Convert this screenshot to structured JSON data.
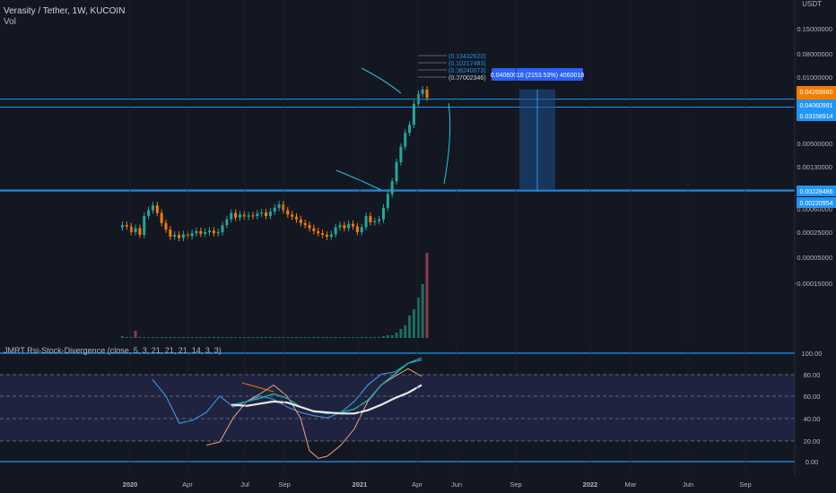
{
  "header": {
    "title": "Verasity / Tether, 1W, KUCOIN",
    "volume_label": "Vol",
    "axis_unit": "USDT",
    "indicator": "JMRT Rsi-Stock-Divergence (close, 5, 3, 21, 21, 21, 14, 3, 3)"
  },
  "colors": {
    "background": "#131722",
    "up": "#26a69a",
    "down": "#f57c00",
    "line_blue": "#2196f3",
    "rsi_band": "#2a2e5a",
    "white_line": "#e6e6e6",
    "orange_line": "#e8a57a",
    "teal_line": "#26a69a",
    "blue_line": "#3c8ed8"
  },
  "chart_data": {
    "type": "candlestick",
    "x_ticks": [
      "2020",
      "Apr",
      "Jul",
      "Sep",
      "2021",
      "Apr",
      "Jun",
      "Sep",
      "2022",
      "Mar",
      "Jun",
      "Sep"
    ],
    "price_axis": {
      "scale": "log",
      "ticks": [
        "0.15000000",
        "0.08000000",
        "0.01000000",
        "0.00500000",
        "0.00130000",
        "0.00060000",
        "0.00025000",
        "0.00005000",
        "-0.00015000"
      ],
      "badges": [
        {
          "text": "0.04269980",
          "color": "#f57c00",
          "sub": "05:11:47"
        },
        {
          "text": "0.04060991",
          "color": "#2196f3"
        },
        {
          "text": "0.03158914",
          "color": "#2196f3"
        },
        {
          "text": "0.00228486",
          "color": "#2196f3"
        },
        {
          "text": "0.00220954",
          "color": "#2196f3"
        }
      ]
    },
    "horizontal_levels": [
      {
        "price": 0.04060991
      },
      {
        "price": 0.03158914
      },
      {
        "price": 0.00228486
      },
      {
        "price": 0.00220954
      }
    ],
    "fib_labels": [
      "(0.13432620)",
      "(0.10217483)",
      "(0.08240073)",
      "(0.07002346)"
    ],
    "measure_label": "0.04060018 (2153.53%) 4060018",
    "candles": [
      {
        "o": 0.0007,
        "c": 0.00075
      },
      {
        "o": 0.00075,
        "c": 0.00072
      },
      {
        "o": 0.00072,
        "c": 0.0006
      },
      {
        "o": 0.0006,
        "c": 0.00068
      },
      {
        "o": 0.00068,
        "c": 0.00055
      },
      {
        "o": 0.00055,
        "c": 0.001
      },
      {
        "o": 0.001,
        "c": 0.0012
      },
      {
        "o": 0.0012,
        "c": 0.0014
      },
      {
        "o": 0.0014,
        "c": 0.0011
      },
      {
        "o": 0.0011,
        "c": 0.0008
      },
      {
        "o": 0.0008,
        "c": 0.00065
      },
      {
        "o": 0.00065,
        "c": 0.00052
      },
      {
        "o": 0.00052,
        "c": 0.00055
      },
      {
        "o": 0.00055,
        "c": 0.0005
      },
      {
        "o": 0.0005,
        "c": 0.00056
      },
      {
        "o": 0.00056,
        "c": 0.00053
      },
      {
        "o": 0.00053,
        "c": 0.00058
      },
      {
        "o": 0.00058,
        "c": 0.00062
      },
      {
        "o": 0.00062,
        "c": 0.00057
      },
      {
        "o": 0.00057,
        "c": 0.0006
      },
      {
        "o": 0.0006,
        "c": 0.00063
      },
      {
        "o": 0.00063,
        "c": 0.00058
      },
      {
        "o": 0.00058,
        "c": 0.0006
      },
      {
        "o": 0.0006,
        "c": 0.00075
      },
      {
        "o": 0.00075,
        "c": 0.0009
      },
      {
        "o": 0.0009,
        "c": 0.0011
      },
      {
        "o": 0.0011,
        "c": 0.00095
      },
      {
        "o": 0.00095,
        "c": 0.00105
      },
      {
        "o": 0.00105,
        "c": 0.00098
      },
      {
        "o": 0.00098,
        "c": 0.00102
      },
      {
        "o": 0.00102,
        "c": 0.001
      },
      {
        "o": 0.001,
        "c": 0.00108
      },
      {
        "o": 0.00108,
        "c": 0.00112
      },
      {
        "o": 0.00112,
        "c": 0.001
      },
      {
        "o": 0.001,
        "c": 0.00115
      },
      {
        "o": 0.00115,
        "c": 0.0013
      },
      {
        "o": 0.0013,
        "c": 0.00145
      },
      {
        "o": 0.00145,
        "c": 0.0012
      },
      {
        "o": 0.0012,
        "c": 0.00105
      },
      {
        "o": 0.00105,
        "c": 0.00098
      },
      {
        "o": 0.00098,
        "c": 0.0009
      },
      {
        "o": 0.0009,
        "c": 0.0008
      },
      {
        "o": 0.0008,
        "c": 0.00075
      },
      {
        "o": 0.00075,
        "c": 0.00068
      },
      {
        "o": 0.00068,
        "c": 0.00062
      },
      {
        "o": 0.00062,
        "c": 0.00058
      },
      {
        "o": 0.00058,
        "c": 0.00055
      },
      {
        "o": 0.00055,
        "c": 0.00052
      },
      {
        "o": 0.00052,
        "c": 0.00056
      },
      {
        "o": 0.00056,
        "c": 0.0007
      },
      {
        "o": 0.0007,
        "c": 0.00075
      },
      {
        "o": 0.00075,
        "c": 0.00068
      },
      {
        "o": 0.00068,
        "c": 0.00078
      },
      {
        "o": 0.00078,
        "c": 0.00072
      },
      {
        "o": 0.00072,
        "c": 0.0006
      },
      {
        "o": 0.0006,
        "c": 0.0007
      },
      {
        "o": 0.0007,
        "c": 0.001
      },
      {
        "o": 0.001,
        "c": 0.00082
      },
      {
        "o": 0.00082,
        "c": 0.00085
      },
      {
        "o": 0.00085,
        "c": 0.0009
      },
      {
        "o": 0.0009,
        "c": 0.0013
      },
      {
        "o": 0.0013,
        "c": 0.002
      },
      {
        "o": 0.002,
        "c": 0.003
      },
      {
        "o": 0.003,
        "c": 0.0055
      },
      {
        "o": 0.0055,
        "c": 0.009
      },
      {
        "o": 0.009,
        "c": 0.014
      },
      {
        "o": 0.014,
        "c": 0.018
      },
      {
        "o": 0.018,
        "c": 0.035
      },
      {
        "o": 0.035,
        "c": 0.048
      },
      {
        "o": 0.048,
        "c": 0.055
      },
      {
        "o": 0.055,
        "c": 0.0427
      }
    ],
    "rsi_axis": {
      "ticks": [
        "100.00",
        "80.00",
        "60.00",
        "40.00",
        "20.00",
        "0.00"
      ]
    }
  }
}
